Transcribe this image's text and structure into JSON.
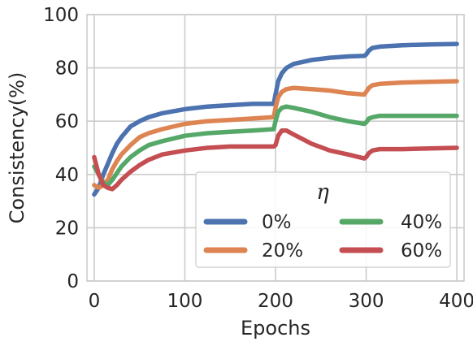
{
  "chart_data": {
    "type": "line",
    "xlabel": "Epochs",
    "ylabel": "Consistency(%)",
    "xlim": [
      -8,
      408
    ],
    "ylim": [
      0,
      100
    ],
    "x_ticks": [
      0,
      100,
      200,
      300,
      400
    ],
    "y_ticks": [
      0,
      20,
      40,
      60,
      80,
      100
    ],
    "grid": true,
    "legend": {
      "title": "η",
      "placement": "lower-right",
      "columns": 2
    },
    "series": [
      {
        "name": "0%",
        "color": "#4c72b0",
        "x": [
          0,
          5,
          10,
          15,
          20,
          25,
          30,
          40,
          50,
          60,
          75,
          100,
          125,
          150,
          175,
          198,
          200,
          203,
          207,
          212,
          220,
          240,
          260,
          280,
          298,
          300,
          303,
          307,
          315,
          340,
          370,
          400
        ],
        "values": [
          32.5,
          35,
          40,
          44,
          48,
          51.5,
          54,
          58,
          60,
          61.5,
          63,
          64.5,
          65.5,
          66,
          66.5,
          66.5,
          70,
          75,
          78,
          80,
          81.5,
          83,
          83.8,
          84.3,
          84.5,
          85,
          86.5,
          87.5,
          88,
          88.5,
          88.8,
          89
        ]
      },
      {
        "name": "20%",
        "color": "#dd8452",
        "x": [
          0,
          5,
          10,
          15,
          20,
          25,
          30,
          40,
          50,
          60,
          75,
          100,
          125,
          150,
          175,
          198,
          200,
          203,
          207,
          212,
          220,
          240,
          260,
          280,
          298,
          300,
          303,
          307,
          315,
          340,
          370,
          400
        ],
        "values": [
          36,
          35,
          36,
          38,
          42,
          45,
          47.5,
          51,
          54,
          55.5,
          57,
          59,
          60,
          60.5,
          61,
          61.5,
          65,
          69,
          71,
          72,
          72.5,
          72,
          71.5,
          70.5,
          70,
          71,
          72.5,
          73.5,
          74,
          74.5,
          74.8,
          75
        ]
      },
      {
        "name": "40%",
        "color": "#55a868",
        "x": [
          0,
          5,
          10,
          15,
          20,
          25,
          30,
          40,
          50,
          60,
          75,
          100,
          125,
          150,
          175,
          198,
          200,
          203,
          207,
          212,
          220,
          240,
          260,
          280,
          298,
          300,
          303,
          307,
          315,
          340,
          370,
          400
        ],
        "values": [
          43,
          40,
          37,
          36,
          38,
          40.5,
          43,
          46.5,
          49,
          51,
          52.5,
          54.5,
          55.5,
          56,
          56.5,
          57,
          60,
          63.5,
          65,
          65.5,
          65,
          63.5,
          61.5,
          60,
          59,
          59.5,
          61,
          61.5,
          62,
          62,
          62,
          62
        ]
      },
      {
        "name": "60%",
        "color": "#c44e52",
        "x": [
          0,
          5,
          10,
          15,
          20,
          25,
          30,
          40,
          50,
          60,
          75,
          100,
          125,
          150,
          175,
          198,
          200,
          203,
          207,
          212,
          220,
          240,
          260,
          280,
          298,
          300,
          303,
          307,
          315,
          340,
          370,
          400
        ],
        "values": [
          46.5,
          40,
          36,
          35,
          34.5,
          36,
          38,
          41,
          43.5,
          45.5,
          47.5,
          49,
          50,
          50.5,
          50.5,
          50.5,
          51,
          54.5,
          56.5,
          56.5,
          55,
          51.5,
          49,
          47.5,
          46,
          46.5,
          48,
          49,
          49.5,
          49.5,
          49.8,
          50
        ]
      }
    ]
  }
}
